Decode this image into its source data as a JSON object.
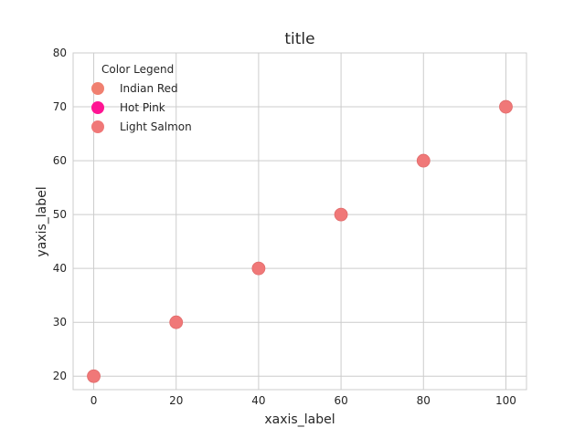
{
  "chart_data": {
    "type": "scatter",
    "title": "title",
    "xlabel": "xaxis_label",
    "ylabel": "yaxis_label",
    "xlim": [
      -5,
      105
    ],
    "ylim": [
      17.5,
      80
    ],
    "xticks": [
      "0",
      "20",
      "40",
      "60",
      "80",
      "100"
    ],
    "yticks": [
      "20",
      "30",
      "40",
      "50",
      "60",
      "70",
      "80"
    ],
    "grid": true,
    "legend": {
      "title": "Color Legend",
      "placement": "top-left",
      "entries": [
        {
          "label": "Indian Red",
          "color": "#f08070"
        },
        {
          "label": "Hot Pink",
          "color": "#ff1493"
        },
        {
          "label": "Light Salmon",
          "color": "#f07878"
        }
      ]
    },
    "points": {
      "color": "#f07878",
      "x": [
        0,
        20,
        40,
        60,
        80,
        100
      ],
      "y": [
        20,
        30,
        40,
        50,
        60,
        70
      ]
    }
  }
}
